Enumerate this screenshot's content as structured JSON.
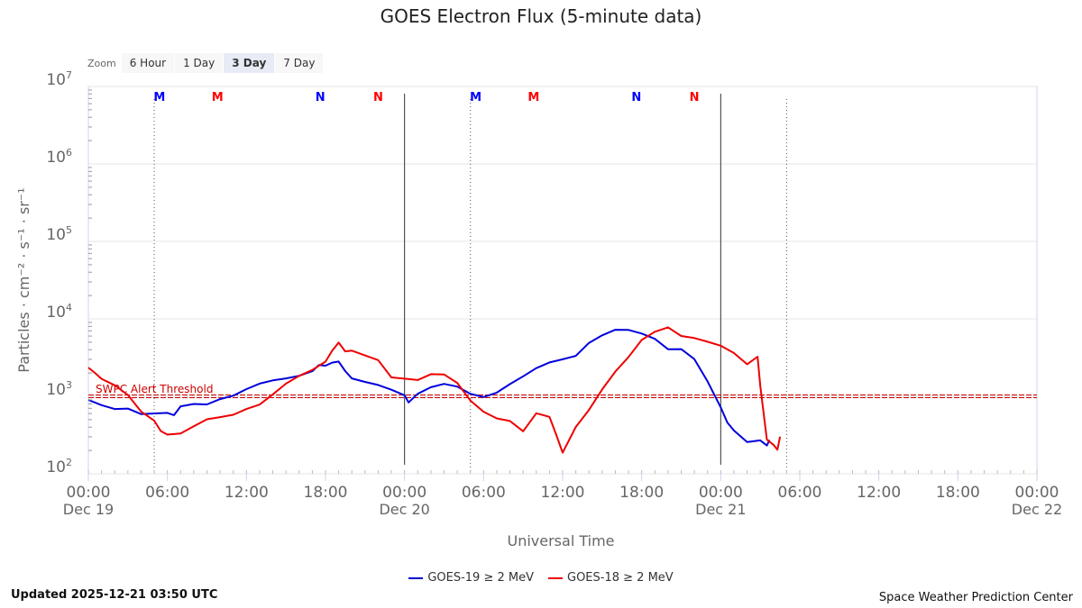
{
  "title": "GOES Electron Flux (5-minute data)",
  "zoom": {
    "label": "Zoom",
    "buttons": [
      "6 Hour",
      "1 Day",
      "3 Day",
      "7 Day"
    ],
    "active": "3 Day"
  },
  "updated": "Updated 2025-12-21 03:50 UTC",
  "credit": "Space Weather Prediction Center",
  "alert_label": "SWPC Alert Threshold",
  "markers": [
    {
      "label": "M",
      "x": 5.4,
      "color": "#0000ff"
    },
    {
      "label": "M",
      "x": 9.8,
      "color": "#ff0000"
    },
    {
      "label": "N",
      "x": 17.6,
      "color": "#0000ff"
    },
    {
      "label": "N",
      "x": 22.0,
      "color": "#ff0000"
    },
    {
      "label": "M",
      "x": 29.4,
      "color": "#0000ff"
    },
    {
      "label": "M",
      "x": 33.8,
      "color": "#ff0000"
    },
    {
      "label": "N",
      "x": 41.6,
      "color": "#0000ff"
    },
    {
      "label": "N",
      "x": 46.0,
      "color": "#ff0000"
    }
  ],
  "colors": {
    "goes19": "#0000dd",
    "goes18": "#ee0000",
    "threshold": "#cc0000"
  },
  "chart_data": {
    "type": "line",
    "xlabel": "Universal Time",
    "ylabel": "Particles · cm⁻² · s⁻¹ · sr⁻¹",
    "y_scale": "log",
    "ylim": [
      100,
      10000000
    ],
    "y_ticks": [
      {
        "value": 100,
        "base": "10",
        "exp": "2"
      },
      {
        "value": 1000,
        "base": "10",
        "exp": "3"
      },
      {
        "value": 10000,
        "base": "10",
        "exp": "4"
      },
      {
        "value": 100000,
        "base": "10",
        "exp": "5"
      },
      {
        "value": 1000000,
        "base": "10",
        "exp": "6"
      },
      {
        "value": 10000000,
        "base": "10",
        "exp": "7"
      }
    ],
    "x_unit": "hours since 2025-12-19 00:00 UTC",
    "xlim": [
      0,
      72
    ],
    "x_ticks": [
      {
        "x": 0,
        "time": "00:00",
        "date": "Dec 19"
      },
      {
        "x": 6,
        "time": "06:00",
        "date": ""
      },
      {
        "x": 12,
        "time": "12:00",
        "date": ""
      },
      {
        "x": 18,
        "time": "18:00",
        "date": ""
      },
      {
        "x": 24,
        "time": "00:00",
        "date": "Dec 20"
      },
      {
        "x": 30,
        "time": "06:00",
        "date": ""
      },
      {
        "x": 36,
        "time": "12:00",
        "date": ""
      },
      {
        "x": 42,
        "time": "18:00",
        "date": ""
      },
      {
        "x": 48,
        "time": "00:00",
        "date": "Dec 21"
      },
      {
        "x": 54,
        "time": "06:00",
        "date": ""
      },
      {
        "x": 60,
        "time": "12:00",
        "date": ""
      },
      {
        "x": 66,
        "time": "18:00",
        "date": ""
      },
      {
        "x": 72,
        "time": "00:00",
        "date": "Dec 22"
      }
    ],
    "day_lines": [
      24,
      48
    ],
    "local_noon_lines": [
      5.0,
      29.0,
      53.0
    ],
    "threshold": 1000,
    "series": [
      {
        "name": "GOES-19 ≥ 2 MeV",
        "color": "#0000dd",
        "points": [
          [
            0,
            900
          ],
          [
            1,
            720
          ],
          [
            2,
            640
          ],
          [
            3,
            690
          ],
          [
            4,
            630
          ],
          [
            5,
            650
          ],
          [
            6,
            620
          ],
          [
            6.5,
            540
          ],
          [
            7,
            690
          ],
          [
            8,
            780
          ],
          [
            9,
            830
          ],
          [
            10,
            1000
          ],
          [
            11,
            1050
          ],
          [
            12,
            1180
          ],
          [
            13,
            1350
          ],
          [
            14,
            1550
          ],
          [
            15,
            1780
          ],
          [
            16,
            2000
          ],
          [
            17,
            2200
          ],
          [
            17.5,
            2450
          ],
          [
            18,
            2300
          ],
          [
            18.5,
            2600
          ],
          [
            19,
            2900
          ],
          [
            19.5,
            2300
          ],
          [
            20,
            1800
          ],
          [
            21,
            1500
          ],
          [
            22,
            1300
          ],
          [
            23,
            1150
          ],
          [
            24,
            1050
          ],
          [
            24.3,
            900
          ],
          [
            25,
            1150
          ],
          [
            26,
            1300
          ],
          [
            27,
            1350
          ],
          [
            28,
            1250
          ],
          [
            29,
            1080
          ],
          [
            30,
            1050
          ],
          [
            31,
            1200
          ],
          [
            32,
            1450
          ],
          [
            33,
            1700
          ],
          [
            34,
            2150
          ],
          [
            35,
            2700
          ],
          [
            36,
            3200
          ],
          [
            37,
            3600
          ],
          [
            38,
            5000
          ],
          [
            39,
            5800
          ],
          [
            40,
            6700
          ],
          [
            41,
            7000
          ],
          [
            42,
            6800
          ],
          [
            43,
            6000
          ],
          [
            44,
            4200
          ],
          [
            45,
            3900
          ],
          [
            46,
            2800
          ],
          [
            47,
            1500
          ],
          [
            48,
            750
          ],
          [
            48.5,
            500
          ],
          [
            49,
            380
          ],
          [
            50,
            250
          ],
          [
            51,
            250
          ],
          [
            51.5,
            220
          ],
          [
            51.7,
            280
          ]
        ]
      },
      {
        "name": "GOES-18 ≥ 2 MeV",
        "color": "#ee0000",
        "points": [
          [
            0,
            2200
          ],
          [
            0.5,
            2000
          ],
          [
            1,
            1800
          ],
          [
            2,
            1500
          ],
          [
            3,
            1050
          ],
          [
            4,
            600
          ],
          [
            5,
            450
          ],
          [
            5.5,
            350
          ],
          [
            6,
            340
          ],
          [
            7,
            360
          ],
          [
            8,
            420
          ],
          [
            9,
            480
          ],
          [
            10,
            500
          ],
          [
            11,
            560
          ],
          [
            12,
            720
          ],
          [
            13,
            850
          ],
          [
            14,
            1100
          ],
          [
            15,
            1400
          ],
          [
            16,
            1700
          ],
          [
            17,
            2100
          ],
          [
            18,
            2900
          ],
          [
            18.5,
            4200
          ],
          [
            19,
            5200
          ],
          [
            19.5,
            3700
          ],
          [
            20,
            3600
          ],
          [
            21,
            3200
          ],
          [
            22,
            3000
          ],
          [
            23,
            1900
          ],
          [
            24,
            1800
          ],
          [
            25,
            1600
          ],
          [
            26,
            1800
          ],
          [
            27,
            1800
          ],
          [
            28,
            1500
          ],
          [
            29,
            950
          ],
          [
            30,
            680
          ],
          [
            31,
            520
          ],
          [
            32,
            450
          ],
          [
            33,
            330
          ],
          [
            34,
            600
          ],
          [
            35,
            580
          ],
          [
            35.5,
            350
          ],
          [
            36,
            190
          ],
          [
            37,
            380
          ],
          [
            38,
            620
          ],
          [
            39,
            1200
          ],
          [
            40,
            2200
          ],
          [
            41,
            3500
          ],
          [
            42,
            5500
          ],
          [
            43,
            6500
          ],
          [
            44,
            7200
          ],
          [
            45,
            5800
          ],
          [
            46,
            5900
          ],
          [
            47,
            5500
          ],
          [
            48,
            4700
          ],
          [
            49,
            3500
          ],
          [
            50,
            2400
          ],
          [
            50.8,
            3100
          ],
          [
            51,
            1400
          ],
          [
            51.5,
            300
          ],
          [
            52,
            250
          ],
          [
            52.3,
            200
          ],
          [
            52.5,
            280
          ]
        ]
      }
    ]
  }
}
